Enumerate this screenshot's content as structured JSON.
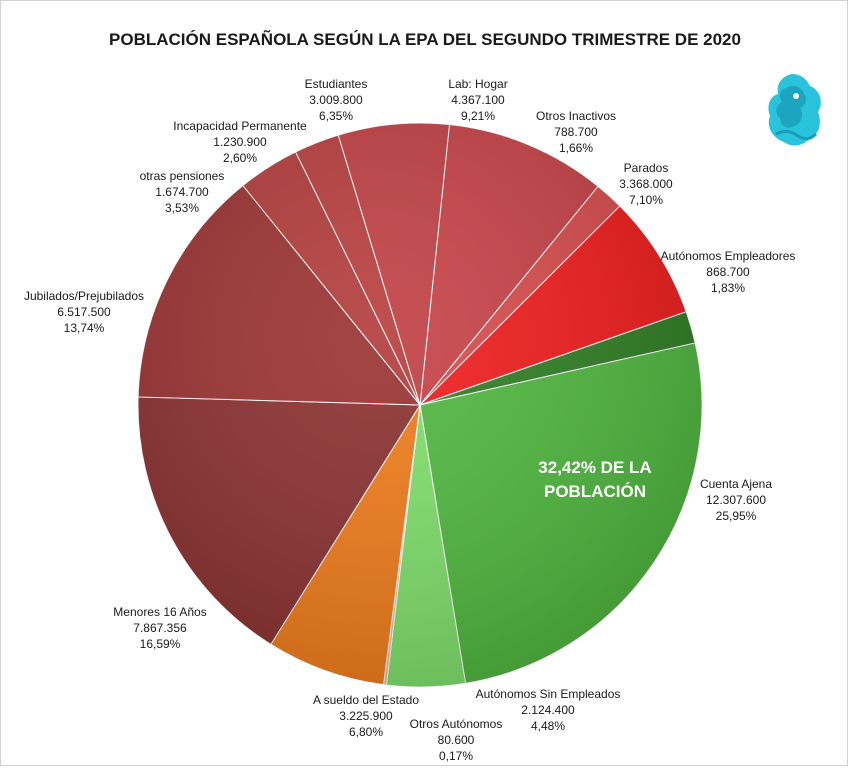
{
  "chart_data": {
    "type": "pie",
    "title": "POBLACIÓN ESPAÑOLA SEGÚN LA EPA DEL SEGUNDO TRIMESTRE DE 2020",
    "annotation": "32,42% DE LA POBLACIÓN",
    "slices": [
      {
        "label": "Lab: Hogar",
        "value_text": "4.367.100",
        "value": 4367100,
        "percent_text": "9,21%",
        "percent": 9.21,
        "color": "#c64045"
      },
      {
        "label": "Otros Inactivos",
        "value_text": "788.700",
        "value": 788700,
        "percent_text": "1,66%",
        "percent": 1.66,
        "color": "#d84a4a"
      },
      {
        "label": "Parados",
        "value_text": "3.368.000",
        "value": 3368000,
        "percent_text": "7,10%",
        "percent": 7.1,
        "color": "#f11a1a"
      },
      {
        "label": "Autónomos Empleadores",
        "value_text": "868.700",
        "value": 868700,
        "percent_text": "1,83%",
        "percent": 1.83,
        "color": "#2e7d22"
      },
      {
        "label": "Cuenta Ajena",
        "value_text": "12.307.600",
        "value": 12307600,
        "percent_text": "25,95%",
        "percent": 25.95,
        "color": "#4fb83e"
      },
      {
        "label": "Autónomos Sin Empleados",
        "value_text": "2.124.400",
        "value": 2124400,
        "percent_text": "4,48%",
        "percent": 4.48,
        "color": "#7ee06a"
      },
      {
        "label": "Otros Autónomos",
        "value_text": "80.600",
        "value": 80600,
        "percent_text": "0,17%",
        "percent": 0.17,
        "color": "#f9b78a"
      },
      {
        "label": "A sueldo del Estado",
        "value_text": "3.225.900",
        "value": 3225900,
        "percent_text": "6,80%",
        "percent": 6.8,
        "color": "#f07b18"
      },
      {
        "label": "Menores 16 Años",
        "value_text": "7.867.356",
        "value": 7867356,
        "percent_text": "16,59%",
        "percent": 16.59,
        "color": "#8a2e2e"
      },
      {
        "label": "Jubilados/Prejubilados",
        "value_text": "6.517.500",
        "value": 6517500,
        "percent_text": "13,74%",
        "percent": 13.74,
        "color": "#9a3030"
      },
      {
        "label": "otras pensiones",
        "value_text": "1.674.700",
        "value": 1674700,
        "percent_text": "3,53%",
        "percent": 3.53,
        "color": "#b23a3a"
      },
      {
        "label": "Incapacidad Permanente",
        "value_text": "1.230.900",
        "value": 1230900,
        "percent_text": "2,60%",
        "percent": 2.6,
        "color": "#b83c3c"
      },
      {
        "label": "Estudiantes",
        "value_text": "3.009.800",
        "value": 3009800,
        "percent_text": "6,35%",
        "percent": 6.35,
        "color": "#c03e42"
      }
    ]
  }
}
